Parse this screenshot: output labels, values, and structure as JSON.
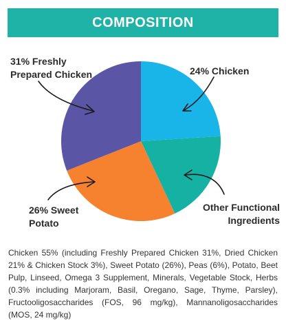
{
  "header": {
    "title": "COMPOSITION",
    "bg_color": "#1fb3a7"
  },
  "chart_data": {
    "type": "pie",
    "title": "COMPOSITION",
    "slices": [
      {
        "label": "24% Chicken",
        "value": 24,
        "color": "#19b5e8"
      },
      {
        "label": "Other Functional Ingredients",
        "value": 19,
        "color": "#15b2a4"
      },
      {
        "label": "26% Sweet Potato",
        "value": 26,
        "color": "#f6822f"
      },
      {
        "label": "31% Freshly Prepared Chicken",
        "value": 31,
        "color": "#5a56a5"
      }
    ],
    "labels": {
      "chicken": "24% Chicken",
      "other_line1": "Other Functional",
      "other_line2": "Ingredients",
      "sweet_line1": "26% Sweet",
      "sweet_line2": "Potato",
      "fresh_line1": "31% Freshly",
      "fresh_line2": "Prepared Chicken"
    }
  },
  "description": "Chicken 55% (including Freshly Prepared Chicken 31%, Dried Chicken 21% & Chicken Stock 3%), Sweet Potato (26%), Peas (6%), Potato, Beet Pulp, Linseed, Omega 3 Supplement, Minerals, Vegetable Stock, Herbs (0.3% including Marjoram, Basil, Oregano, Sage, Thyme, Parsley), Fructooligosaccharides (FOS, 96 mg/kg), Mannanoligosaccharides (MOS, 24 mg/kg)"
}
